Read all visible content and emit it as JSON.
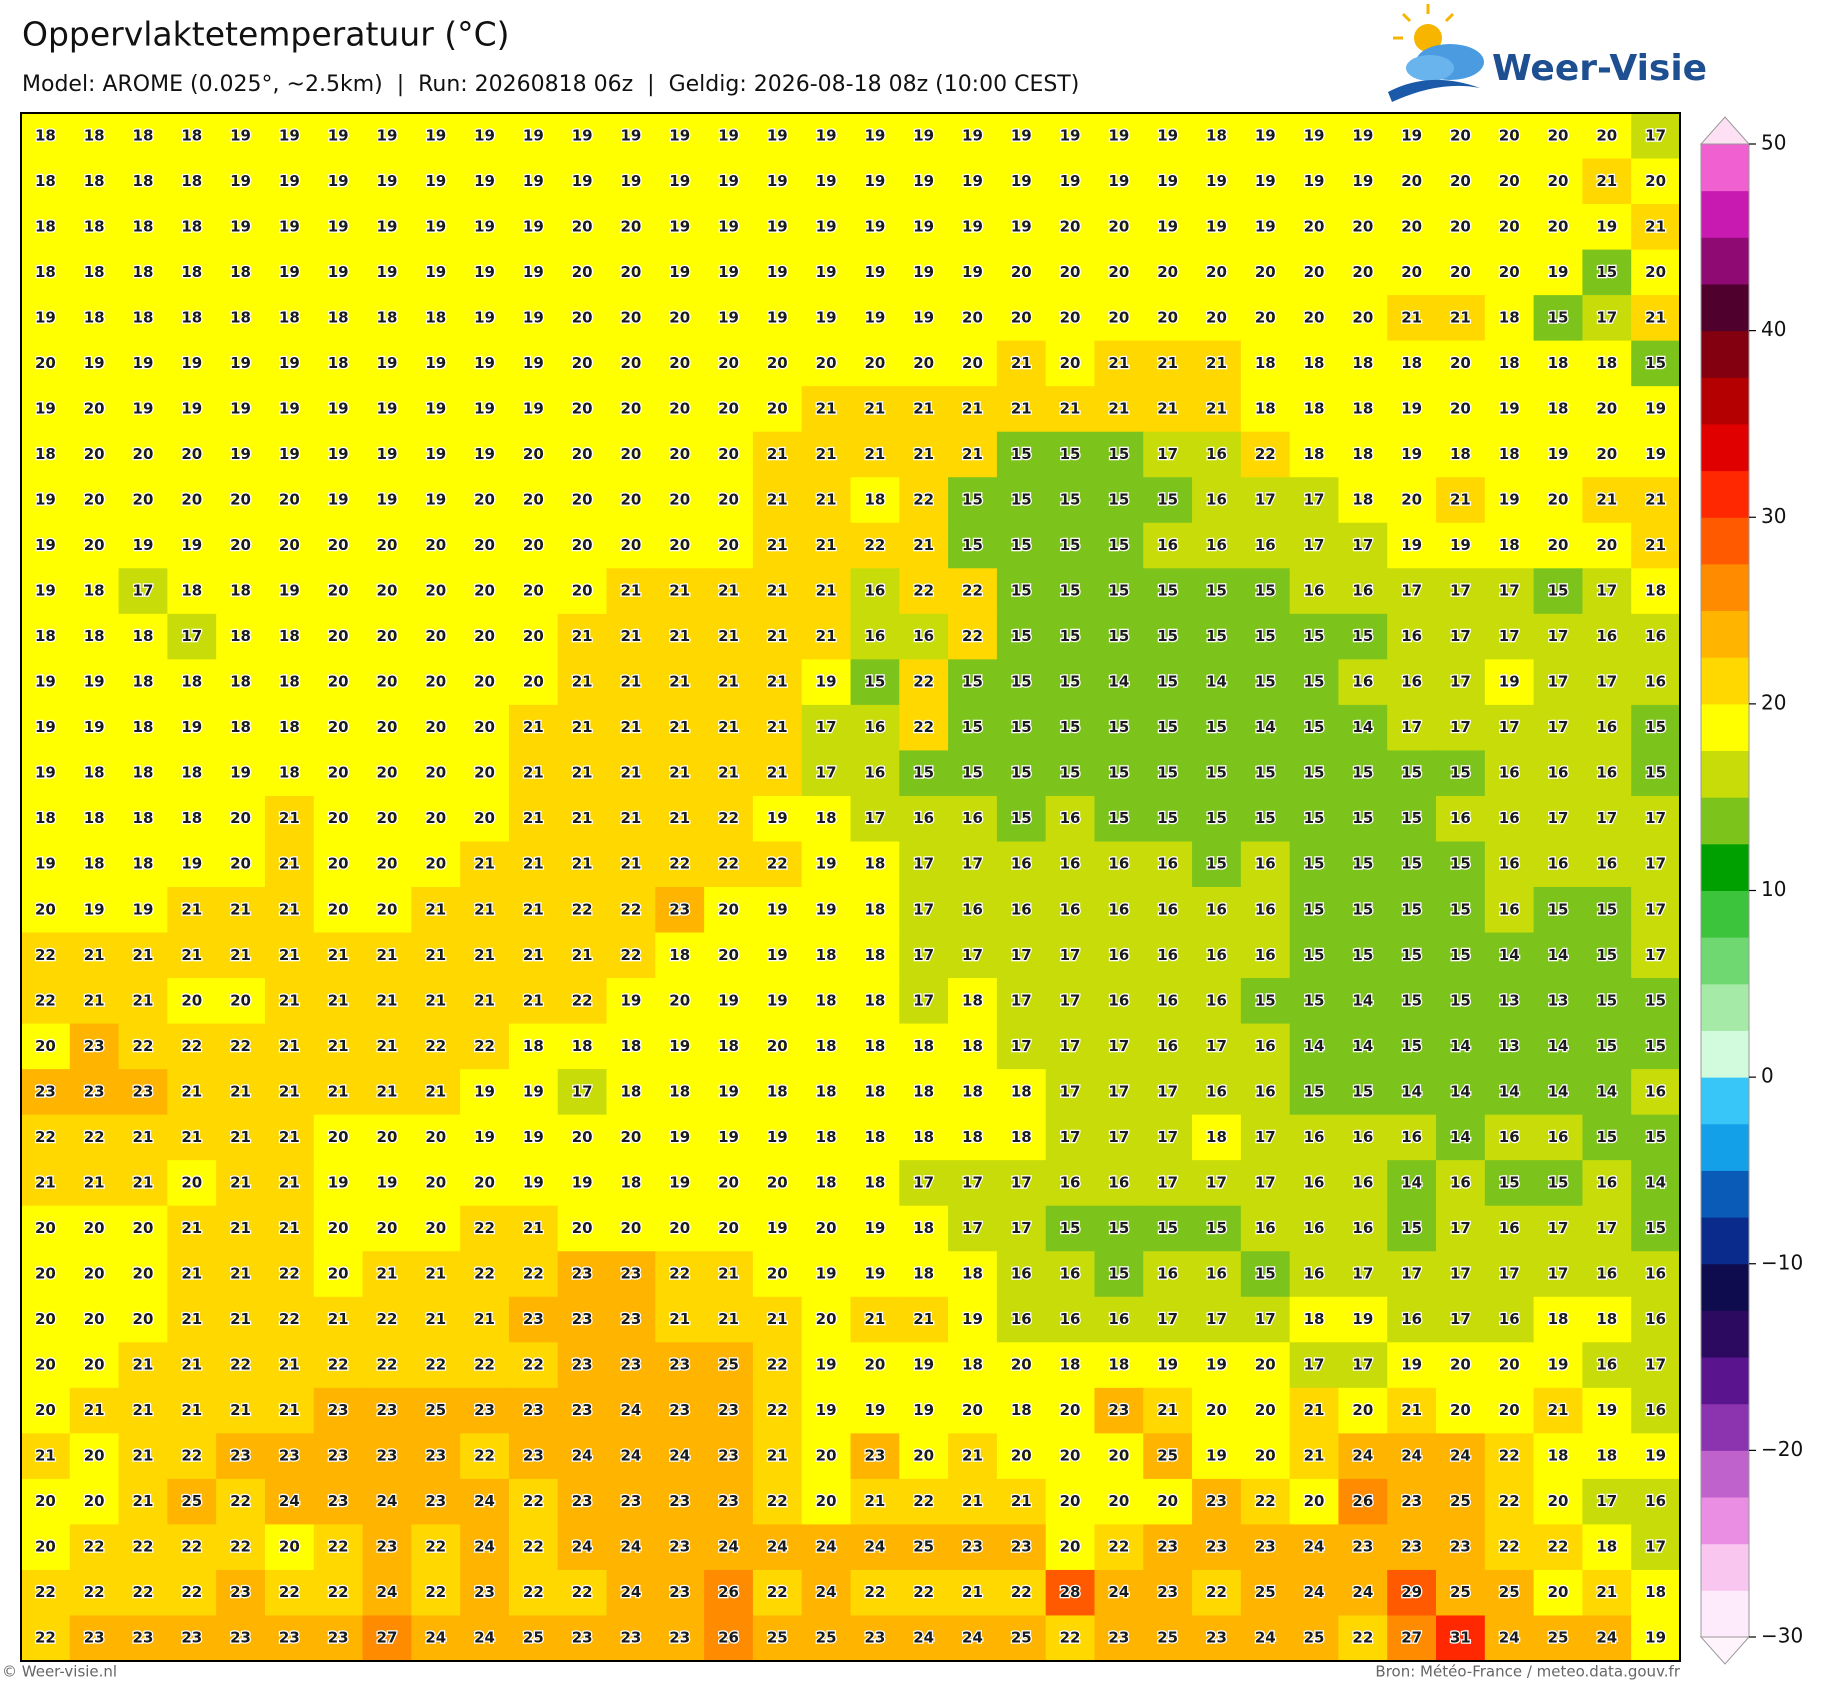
{
  "header": {
    "title": "Oppervlaktetemperatuur (°C)",
    "subtitle": "Model: AROME (0.025°, ~2.5km)  |  Run: 20260818 06z  |  Geldig: 2026-08-18 08z (10:00 CEST)"
  },
  "logo": "Weer-Visie",
  "footer": {
    "left": "© Weer-visie.nl",
    "right": "Bron: Météo-France / meteo.data.gouv.fr"
  },
  "map": {
    "values": [
      [
        18,
        18,
        18,
        18,
        19,
        19,
        19,
        19,
        19,
        19,
        19,
        19,
        19,
        19,
        19,
        19,
        19,
        19,
        19,
        19,
        19,
        19,
        19,
        19,
        18,
        19,
        19,
        19,
        19,
        20,
        20,
        20,
        20,
        17
      ],
      [
        18,
        18,
        18,
        18,
        19,
        19,
        19,
        19,
        19,
        19,
        19,
        19,
        19,
        19,
        19,
        19,
        19,
        19,
        19,
        19,
        19,
        19,
        19,
        19,
        19,
        19,
        19,
        19,
        20,
        20,
        20,
        20,
        21,
        20
      ],
      [
        18,
        18,
        18,
        18,
        19,
        19,
        19,
        19,
        19,
        19,
        19,
        20,
        20,
        19,
        19,
        19,
        19,
        19,
        19,
        19,
        19,
        20,
        20,
        19,
        19,
        19,
        20,
        20,
        20,
        20,
        20,
        20,
        19,
        21
      ],
      [
        18,
        18,
        18,
        18,
        18,
        19,
        19,
        19,
        19,
        19,
        19,
        20,
        20,
        19,
        19,
        19,
        19,
        19,
        19,
        19,
        20,
        20,
        20,
        20,
        20,
        20,
        20,
        20,
        20,
        20,
        20,
        19,
        15,
        20
      ],
      [
        19,
        18,
        18,
        18,
        18,
        18,
        18,
        18,
        18,
        19,
        19,
        20,
        20,
        20,
        19,
        19,
        19,
        19,
        19,
        20,
        20,
        20,
        20,
        20,
        20,
        20,
        20,
        20,
        21,
        21,
        18,
        15,
        17,
        21
      ],
      [
        20,
        19,
        19,
        19,
        19,
        19,
        18,
        19,
        19,
        19,
        19,
        20,
        20,
        20,
        20,
        20,
        20,
        20,
        20,
        20,
        21,
        20,
        21,
        21,
        21,
        18,
        18,
        18,
        18,
        20,
        18,
        18,
        18,
        15
      ],
      [
        19,
        20,
        19,
        19,
        19,
        19,
        19,
        19,
        19,
        19,
        19,
        20,
        20,
        20,
        20,
        20,
        21,
        21,
        21,
        21,
        21,
        21,
        21,
        21,
        21,
        18,
        18,
        18,
        19,
        20,
        19,
        18,
        20,
        19
      ],
      [
        18,
        20,
        20,
        20,
        19,
        19,
        19,
        19,
        19,
        19,
        20,
        20,
        20,
        20,
        20,
        21,
        21,
        21,
        21,
        21,
        15,
        15,
        15,
        17,
        16,
        22,
        18,
        18,
        19,
        18,
        18,
        19,
        20,
        19
      ],
      [
        19,
        20,
        20,
        20,
        20,
        20,
        19,
        19,
        19,
        20,
        20,
        20,
        20,
        20,
        20,
        21,
        21,
        18,
        22,
        15,
        15,
        15,
        15,
        15,
        16,
        17,
        17,
        18,
        20,
        21,
        19,
        20,
        21,
        21
      ],
      [
        19,
        20,
        19,
        19,
        20,
        20,
        20,
        20,
        20,
        20,
        20,
        20,
        20,
        20,
        20,
        21,
        21,
        22,
        21,
        15,
        15,
        15,
        15,
        16,
        16,
        16,
        17,
        17,
        19,
        19,
        18,
        20,
        20,
        21
      ],
      [
        19,
        18,
        17,
        18,
        18,
        19,
        20,
        20,
        20,
        20,
        20,
        20,
        21,
        21,
        21,
        21,
        21,
        16,
        22,
        22,
        15,
        15,
        15,
        15,
        15,
        15,
        16,
        16,
        17,
        17,
        17,
        15,
        17,
        18
      ],
      [
        18,
        18,
        18,
        17,
        18,
        18,
        20,
        20,
        20,
        20,
        20,
        21,
        21,
        21,
        21,
        21,
        21,
        16,
        16,
        22,
        15,
        15,
        15,
        15,
        15,
        15,
        15,
        15,
        16,
        17,
        17,
        17,
        16,
        16
      ],
      [
        19,
        19,
        18,
        18,
        18,
        18,
        20,
        20,
        20,
        20,
        20,
        21,
        21,
        21,
        21,
        21,
        19,
        15,
        22,
        15,
        15,
        15,
        14,
        15,
        14,
        15,
        15,
        16,
        16,
        17,
        19,
        17,
        17,
        16
      ],
      [
        19,
        19,
        18,
        19,
        18,
        18,
        20,
        20,
        20,
        20,
        21,
        21,
        21,
        21,
        21,
        21,
        17,
        16,
        22,
        15,
        15,
        15,
        15,
        15,
        15,
        14,
        15,
        14,
        17,
        17,
        17,
        17,
        16,
        15
      ],
      [
        19,
        18,
        18,
        18,
        19,
        18,
        20,
        20,
        20,
        20,
        21,
        21,
        21,
        21,
        21,
        21,
        17,
        16,
        15,
        15,
        15,
        15,
        15,
        15,
        15,
        15,
        15,
        15,
        15,
        15,
        16,
        16,
        16,
        15
      ],
      [
        18,
        18,
        18,
        18,
        20,
        21,
        20,
        20,
        20,
        20,
        21,
        21,
        21,
        21,
        22,
        19,
        18,
        17,
        16,
        16,
        15,
        16,
        15,
        15,
        15,
        15,
        15,
        15,
        15,
        16,
        16,
        17,
        17,
        17
      ],
      [
        19,
        18,
        18,
        19,
        20,
        21,
        20,
        20,
        20,
        21,
        21,
        21,
        21,
        22,
        22,
        22,
        19,
        18,
        17,
        17,
        16,
        16,
        16,
        16,
        15,
        16,
        15,
        15,
        15,
        15,
        16,
        16,
        16,
        17
      ],
      [
        20,
        19,
        19,
        21,
        21,
        21,
        20,
        20,
        21,
        21,
        21,
        22,
        22,
        23,
        20,
        19,
        19,
        18,
        17,
        16,
        16,
        16,
        16,
        16,
        16,
        16,
        15,
        15,
        15,
        15,
        16,
        15,
        15,
        17
      ],
      [
        22,
        21,
        21,
        21,
        21,
        21,
        21,
        21,
        21,
        21,
        21,
        21,
        22,
        18,
        20,
        19,
        18,
        18,
        17,
        17,
        17,
        17,
        16,
        16,
        16,
        16,
        15,
        15,
        15,
        15,
        14,
        14,
        15,
        17
      ],
      [
        22,
        21,
        21,
        20,
        20,
        21,
        21,
        21,
        21,
        21,
        21,
        22,
        19,
        20,
        19,
        19,
        18,
        18,
        17,
        18,
        17,
        17,
        16,
        16,
        16,
        15,
        15,
        14,
        15,
        15,
        13,
        13,
        15,
        15
      ],
      [
        20,
        23,
        22,
        22,
        22,
        21,
        21,
        21,
        22,
        22,
        18,
        18,
        18,
        19,
        18,
        20,
        18,
        18,
        18,
        18,
        17,
        17,
        17,
        16,
        17,
        16,
        14,
        14,
        15,
        14,
        13,
        14,
        15,
        15
      ],
      [
        23,
        23,
        23,
        21,
        21,
        21,
        21,
        21,
        21,
        19,
        19,
        17,
        18,
        18,
        19,
        18,
        18,
        18,
        18,
        18,
        18,
        17,
        17,
        17,
        16,
        16,
        15,
        15,
        14,
        14,
        14,
        14,
        14,
        16
      ],
      [
        22,
        22,
        21,
        21,
        21,
        21,
        20,
        20,
        20,
        19,
        19,
        20,
        20,
        19,
        19,
        19,
        18,
        18,
        18,
        18,
        18,
        17,
        17,
        17,
        18,
        17,
        16,
        16,
        16,
        14,
        16,
        16,
        15,
        15
      ],
      [
        21,
        21,
        21,
        20,
        21,
        21,
        19,
        19,
        20,
        20,
        19,
        19,
        18,
        19,
        20,
        20,
        18,
        18,
        17,
        17,
        17,
        16,
        16,
        17,
        17,
        17,
        16,
        16,
        14,
        16,
        15,
        15,
        16,
        14
      ],
      [
        20,
        20,
        20,
        21,
        21,
        21,
        20,
        20,
        20,
        22,
        21,
        20,
        20,
        20,
        20,
        19,
        20,
        19,
        18,
        17,
        17,
        15,
        15,
        15,
        15,
        16,
        16,
        16,
        15,
        17,
        16,
        17,
        17,
        15
      ],
      [
        20,
        20,
        20,
        21,
        21,
        22,
        20,
        21,
        21,
        22,
        22,
        23,
        23,
        22,
        21,
        20,
        19,
        19,
        18,
        18,
        16,
        16,
        15,
        16,
        16,
        15,
        16,
        17,
        17,
        17,
        17,
        17,
        16,
        16
      ],
      [
        20,
        20,
        20,
        21,
        21,
        22,
        21,
        22,
        21,
        21,
        23,
        23,
        23,
        21,
        21,
        21,
        20,
        21,
        21,
        19,
        16,
        16,
        16,
        17,
        17,
        17,
        18,
        19,
        16,
        17,
        16,
        18,
        18,
        16
      ],
      [
        20,
        20,
        21,
        21,
        22,
        21,
        22,
        22,
        22,
        22,
        22,
        23,
        23,
        23,
        25,
        22,
        19,
        20,
        19,
        18,
        20,
        18,
        18,
        19,
        19,
        20,
        17,
        17,
        19,
        20,
        20,
        19,
        16,
        17
      ],
      [
        20,
        21,
        21,
        21,
        21,
        21,
        23,
        23,
        25,
        23,
        23,
        23,
        24,
        23,
        23,
        22,
        19,
        19,
        19,
        20,
        18,
        20,
        23,
        21,
        20,
        20,
        21,
        20,
        21,
        20,
        20,
        21,
        19,
        16
      ],
      [
        21,
        20,
        21,
        22,
        23,
        23,
        23,
        23,
        23,
        22,
        23,
        24,
        24,
        24,
        23,
        21,
        20,
        23,
        20,
        21,
        20,
        20,
        20,
        25,
        19,
        20,
        21,
        24,
        24,
        24,
        22,
        18,
        18,
        19
      ],
      [
        20,
        20,
        21,
        25,
        22,
        24,
        23,
        24,
        23,
        24,
        22,
        23,
        23,
        23,
        23,
        22,
        20,
        21,
        22,
        21,
        21,
        20,
        20,
        20,
        23,
        22,
        20,
        26,
        23,
        25,
        22,
        20,
        17,
        16
      ],
      [
        20,
        22,
        22,
        22,
        22,
        20,
        22,
        23,
        22,
        24,
        22,
        24,
        24,
        23,
        24,
        24,
        24,
        24,
        25,
        23,
        23,
        20,
        22,
        23,
        23,
        23,
        24,
        23,
        23,
        23,
        22,
        22,
        18,
        17
      ],
      [
        22,
        22,
        22,
        22,
        23,
        22,
        22,
        24,
        22,
        23,
        22,
        22,
        24,
        23,
        26,
        22,
        24,
        22,
        22,
        21,
        22,
        28,
        24,
        23,
        22,
        25,
        24,
        24,
        29,
        25,
        25,
        20,
        21,
        18
      ],
      [
        22,
        23,
        23,
        23,
        23,
        23,
        23,
        27,
        24,
        24,
        25,
        23,
        23,
        23,
        26,
        25,
        25,
        23,
        24,
        24,
        25,
        22,
        23,
        25,
        23,
        24,
        25,
        22,
        27,
        31,
        24,
        25,
        24,
        19
      ]
    ]
  },
  "colorbar": {
    "lim": [
      -30,
      50
    ],
    "ticks": [
      50,
      40,
      30,
      20,
      10,
      0,
      {
        "value": -10,
        "label": "−10"
      },
      {
        "value": -20,
        "label": "−20"
      },
      {
        "value": -30,
        "label": "−30"
      }
    ],
    "colors": [
      "#fdeafa",
      "#f9c6f0",
      "#e98ee2",
      "#c062cc",
      "#8c34b0",
      "#5a148e",
      "#2c0a60",
      "#0e0c4e",
      "#0a2a8c",
      "#0a5ab8",
      "#14a0e8",
      "#38c6f8",
      "#d2fadc",
      "#a6eaa8",
      "#70d870",
      "#3cc43c",
      "#00a000",
      "#7cc41c",
      "#c8dc0a",
      "#ffff00",
      "#ffd800",
      "#ffb400",
      "#ff8c00",
      "#ff5a00",
      "#ff2800",
      "#e00000",
      "#b40000",
      "#820010",
      "#50002c",
      "#900a74",
      "#c81ab0",
      "#f060d0"
    ]
  }
}
